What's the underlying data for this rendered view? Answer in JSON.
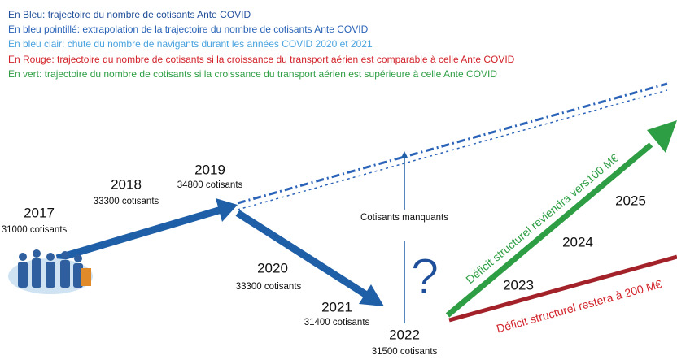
{
  "legend": [
    {
      "text": "En Bleu: trajectoire du nombre de cotisants Ante COVID",
      "color": "#1f4f9a"
    },
    {
      "text": "En bleu pointillé: extrapolation de la trajectoire du nombre de cotisants Ante COVID",
      "color": "#2a63b8"
    },
    {
      "text": "En bleu clair: chute du nombre de navigants durant les années COVID 2020 et 2021",
      "color": "#4aa3df"
    },
    {
      "text": "En Rouge: trajectoire du nombre de cotisants si la croissance du transport aérien est comparable à celle Ante COVID",
      "color": "#d2232a"
    },
    {
      "text": "En vert: trajectoire du nombre de cotisants si la croissance du transport aérien est supérieure à celle Ante COVID",
      "color": "#2e9e44"
    }
  ],
  "points": [
    {
      "year": "2017",
      "label": "31000 cotisants"
    },
    {
      "year": "2018",
      "label": "33300 cotisants"
    },
    {
      "year": "2019",
      "label": "34800 cotisants"
    },
    {
      "year": "2020",
      "label": "33300 cotisants"
    },
    {
      "year": "2021",
      "label": "31400 cotisants"
    },
    {
      "year": "2022",
      "label": "31500 cotisants"
    }
  ],
  "missing_label": "Cotisants manquants",
  "question": "?",
  "green_text": "Déficit structurel reviendra vers100 M€",
  "red_text": "Déficit structurel restera à 200 M€",
  "future_years": [
    "2023",
    "2024",
    "2025"
  ]
}
